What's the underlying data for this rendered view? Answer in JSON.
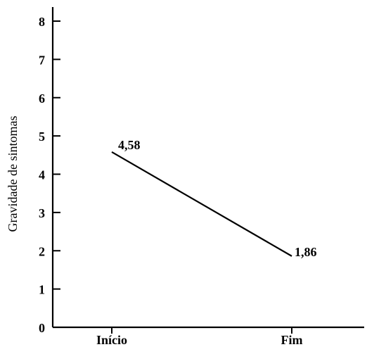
{
  "chart_data": {
    "type": "line",
    "categories": [
      "Início",
      "Fim"
    ],
    "series": [
      {
        "values": [
          4.58,
          1.86
        ],
        "labels": [
          "4,58",
          "1,86"
        ]
      }
    ],
    "ylabel": "Gravidade de sintomas",
    "xlabel": "",
    "ylim": [
      0,
      8
    ],
    "yticks": [
      "0",
      "1",
      "2",
      "3",
      "4",
      "5",
      "6",
      "7",
      "8"
    ],
    "grid": false,
    "line_color": "#000000"
  }
}
